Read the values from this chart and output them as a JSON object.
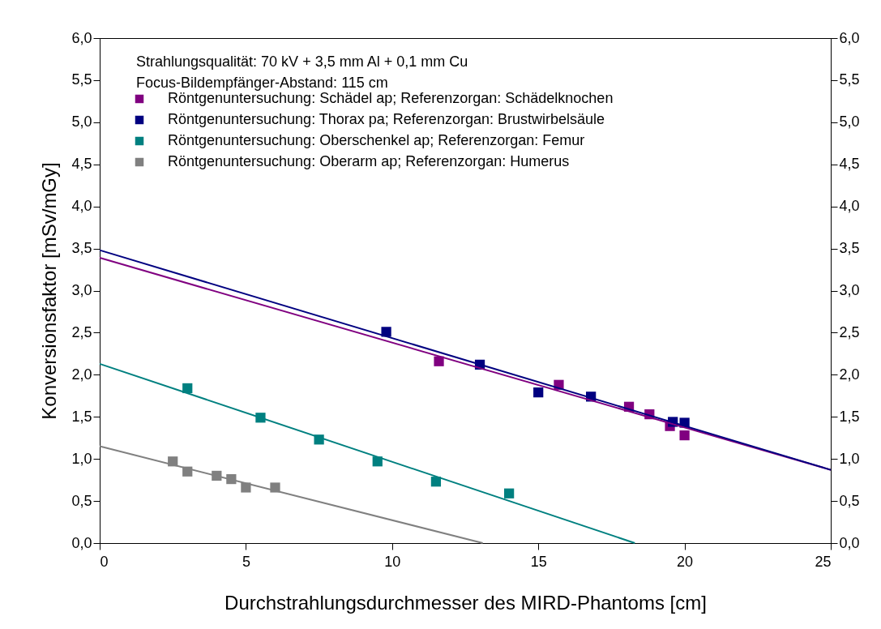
{
  "chart_data": {
    "type": "scatter",
    "xlabel": "Durchstrahlungsdurchmesser des MIRD-Phantoms [cm]",
    "ylabel": "Konversionsfaktor [mSv/mGy]",
    "annotations": [
      "Strahlungsqualität: 70 kV + 3,5 mm Al + 0,1 mm Cu",
      "Focus-Bildempfänger-Abstand: 115 cm"
    ],
    "xlim": [
      0,
      25
    ],
    "xticks": [
      0,
      5,
      10,
      15,
      20,
      25
    ],
    "ylim": [
      0,
      6
    ],
    "yticks": [
      {
        "value": 0,
        "label": "0,0"
      },
      {
        "value": 0.5,
        "label": "0,5"
      },
      {
        "value": 1,
        "label": "1,0"
      },
      {
        "value": 1.5,
        "label": "1,5"
      },
      {
        "value": 2,
        "label": "2,0"
      },
      {
        "value": 2.5,
        "label": "2,5"
      },
      {
        "value": 3,
        "label": "3,0"
      },
      {
        "value": 3.5,
        "label": "3,5"
      },
      {
        "value": 4,
        "label": "4,0"
      },
      {
        "value": 4.5,
        "label": "4,5"
      },
      {
        "value": 5,
        "label": "5,0"
      },
      {
        "value": 5.5,
        "label": "5,5"
      },
      {
        "value": 6,
        "label": "6,0"
      }
    ],
    "y2lim": [
      0,
      6
    ],
    "y2ticks": [
      {
        "value": 0,
        "label": "0,0"
      },
      {
        "value": 0.5,
        "label": "0,5"
      },
      {
        "value": 1,
        "label": "1,0"
      },
      {
        "value": 1.5,
        "label": "1,5"
      },
      {
        "value": 2,
        "label": "2,0"
      },
      {
        "value": 2.5,
        "label": "2,5"
      },
      {
        "value": 3,
        "label": "3,0"
      },
      {
        "value": 3.5,
        "label": "3,5"
      },
      {
        "value": 4,
        "label": "4,0"
      },
      {
        "value": 4.5,
        "label": "4,5"
      },
      {
        "value": 5,
        "label": "5,0"
      },
      {
        "value": 5.5,
        "label": "5,5"
      },
      {
        "value": 6,
        "label": "6,0"
      }
    ],
    "grid": false,
    "legend": "top left",
    "marker": "square",
    "series": [
      {
        "name": "Röntgenuntersuchung: Schädel ap; Referenzorgan: Schädelknochen",
        "color": "#800080",
        "x": [
          11.6,
          15.7,
          18.1,
          18.8,
          19.5,
          20
        ],
        "values": [
          2.16,
          1.88,
          1.62,
          1.53,
          1.39,
          1.28
        ]
      },
      {
        "name": "Röntgenuntersuchung: Thorax pa; Referenzorgan: Brustwirbelsäule",
        "color": "#000080",
        "x": [
          9.8,
          13,
          15,
          16.8,
          19.6,
          20
        ],
        "values": [
          2.51,
          2.12,
          1.79,
          1.74,
          1.44,
          1.43
        ]
      },
      {
        "name": "Röntgenuntersuchung: Oberschenkel ap; Referenzorgan: Femur",
        "color": "#008080",
        "x": [
          3,
          5.5,
          7.5,
          9.5,
          11.5,
          14
        ],
        "values": [
          1.84,
          1.49,
          1.23,
          0.97,
          0.73,
          0.59
        ]
      },
      {
        "name": "Röntgenuntersuchung: Oberarm ap; Referenzorgan: Humerus",
        "color": "#808080",
        "x": [
          2.5,
          3,
          4,
          4.5,
          5,
          6
        ],
        "values": [
          0.97,
          0.85,
          0.8,
          0.76,
          0.66,
          0.66
        ]
      },
      {
        "type": "line",
        "marker": "none",
        "color": "#800080",
        "x": [
          0,
          25
        ],
        "values": [
          3.39,
          0.87
        ]
      },
      {
        "type": "line",
        "marker": "none",
        "color": "#000080",
        "x": [
          0,
          25
        ],
        "values": [
          3.48,
          0.87
        ]
      },
      {
        "type": "line",
        "marker": "none",
        "color": "#008080",
        "x": [
          0,
          18.3
        ],
        "values": [
          2.13,
          0
        ]
      },
      {
        "type": "line",
        "marker": "none",
        "color": "#808080",
        "x": [
          0,
          13.1
        ],
        "values": [
          1.15,
          0
        ]
      }
    ]
  }
}
